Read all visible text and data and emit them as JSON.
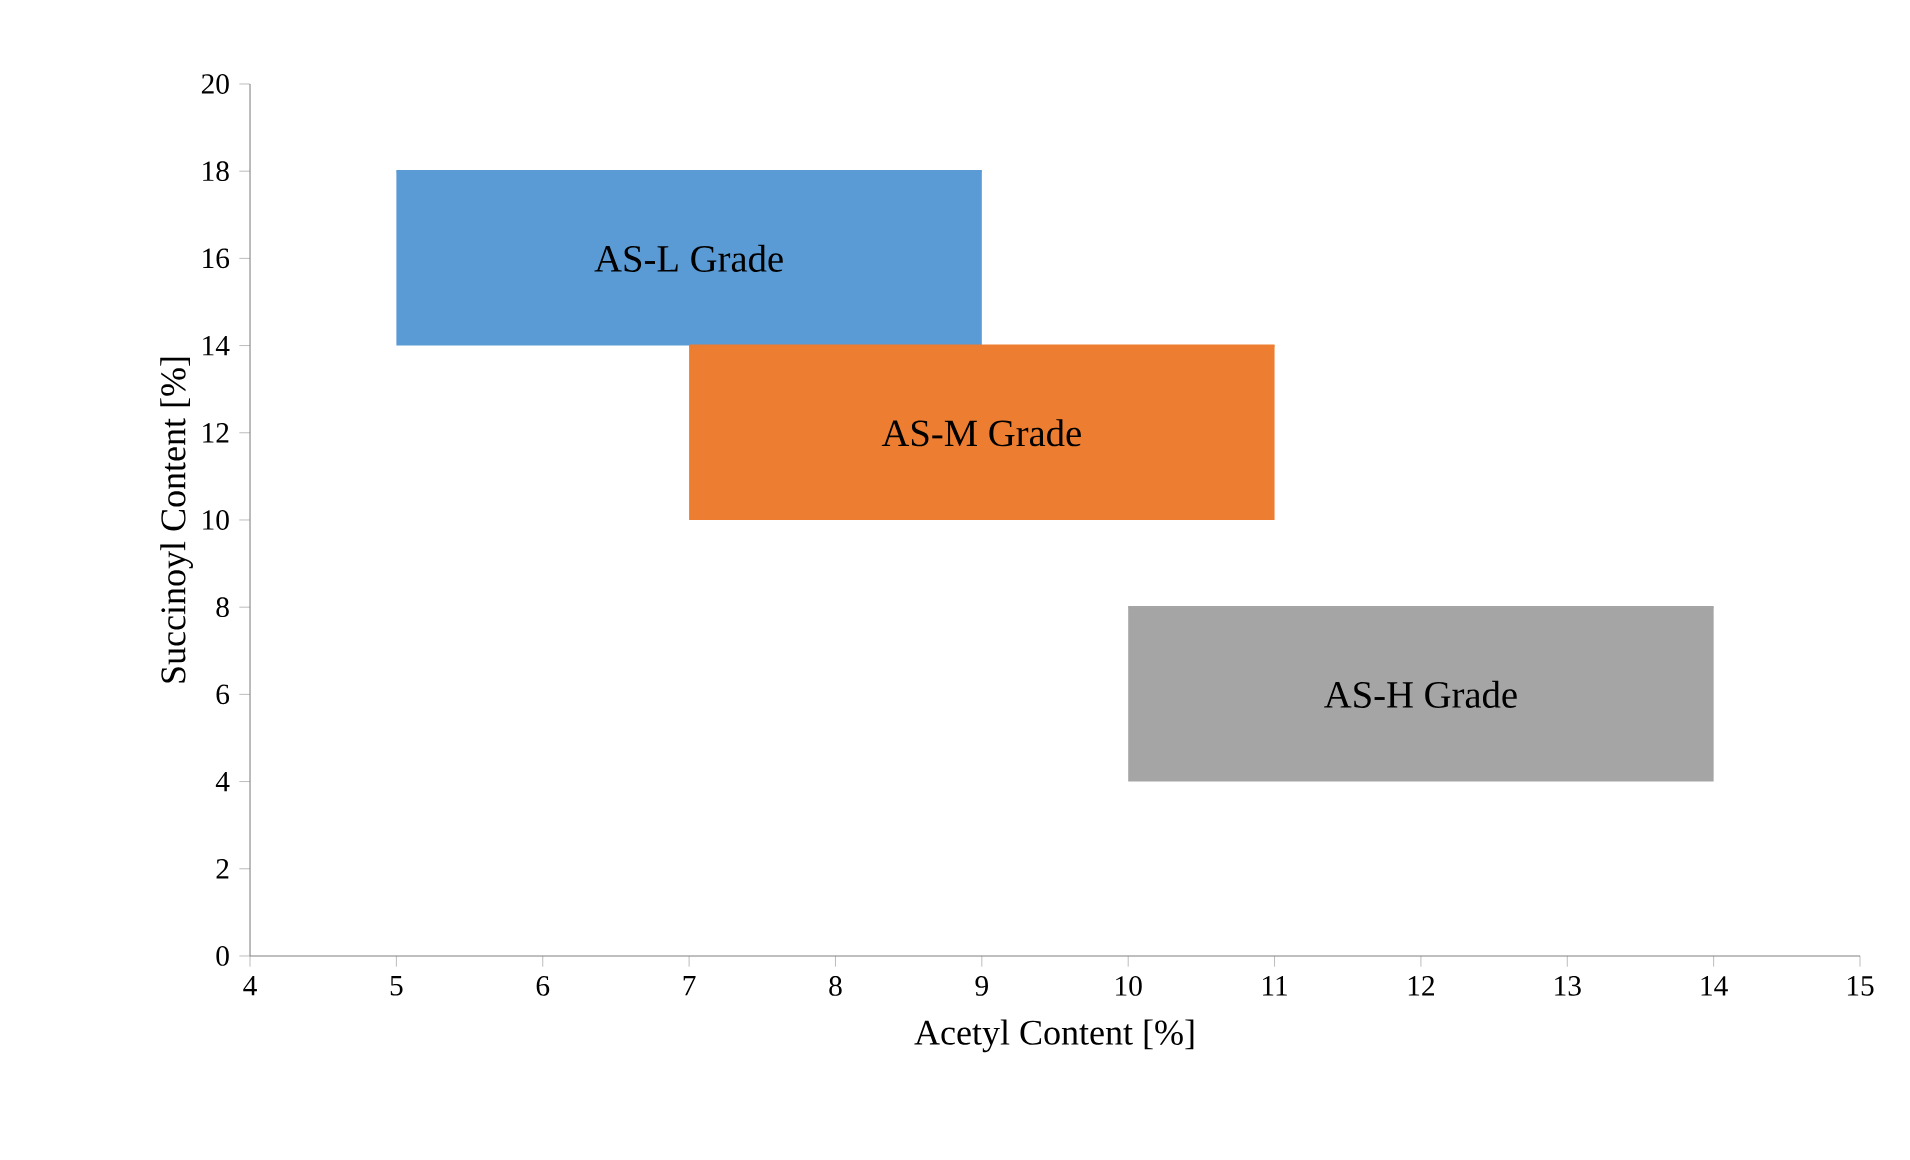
{
  "chart_data": {
    "type": "line",
    "xlabel": "Acetyl Content  [%]",
    "ylabel": "Succinoyl Content [%]",
    "xlim": [
      4,
      15
    ],
    "xticks": [
      4,
      5,
      6,
      7,
      8,
      9,
      10,
      11,
      12,
      13,
      14,
      15
    ],
    "ylim": [
      0,
      20
    ],
    "yticks": [
      0,
      2,
      4,
      6,
      8,
      10,
      12,
      14,
      16,
      18,
      20
    ],
    "grid": false,
    "marker": "none",
    "series": [
      {
        "name": "AS-L Grade",
        "color": "#5b9bd5",
        "x": [
          5,
          9
        ],
        "values": [
          18,
          18
        ],
        "lower": [
          14,
          14
        ],
        "upper": [
          18,
          18
        ]
      },
      {
        "name": "AS-M Grade",
        "color": "#ed7d31",
        "x": [
          7,
          11
        ],
        "values": [
          14,
          14
        ],
        "lower": [
          10,
          10
        ],
        "upper": [
          14,
          14
        ]
      },
      {
        "name": "AS-H Grade",
        "color": "#a5a5a5",
        "x": [
          10,
          14
        ],
        "values": [
          8,
          8
        ],
        "lower": [
          4,
          4
        ],
        "upper": [
          8,
          8
        ]
      }
    ]
  }
}
